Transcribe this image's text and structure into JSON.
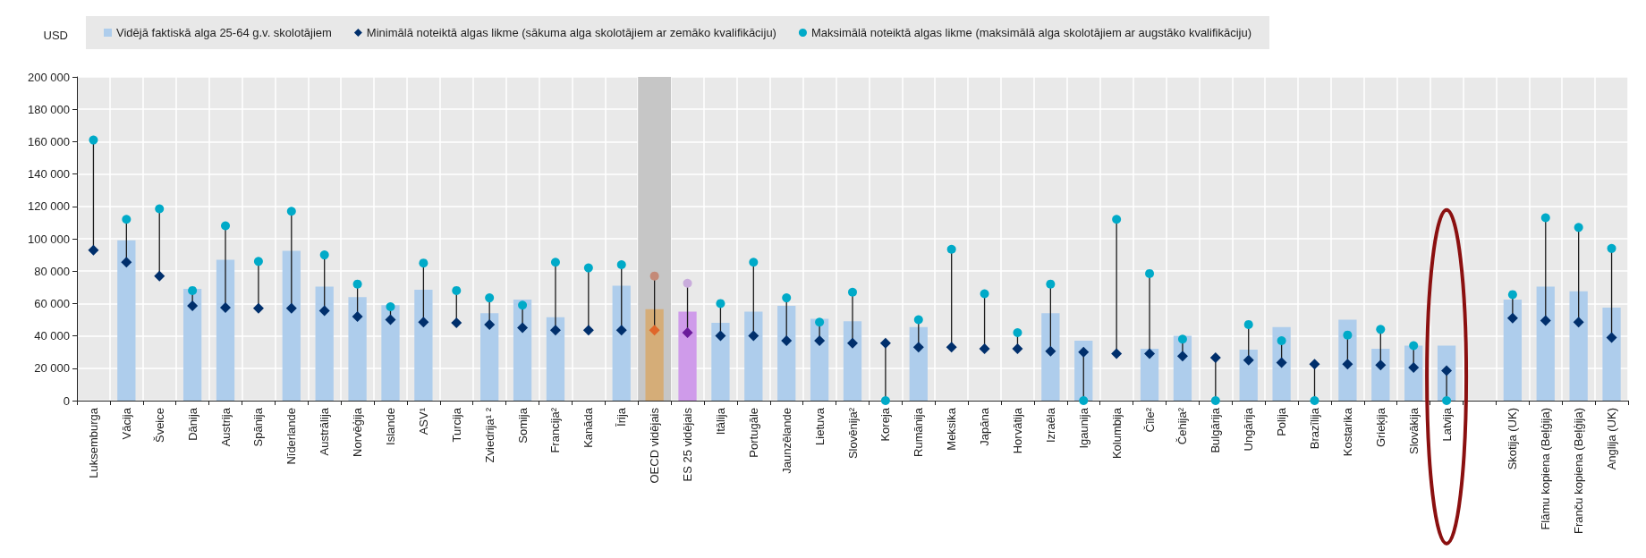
{
  "chart_data": {
    "type": "bar",
    "ylabel": "USD",
    "categories": [
      "Luksemburga",
      "Vācija",
      "Šveice",
      "Dānija",
      "Austrija",
      "Spānija",
      "Nīderlande",
      "Austrālija",
      "Norvēģija",
      "Islande",
      "ASV¹",
      "Turcija",
      "Zviedrija¹ ²",
      "Somija",
      "Francija²",
      "Kanāda",
      "Īrija",
      "OECD vidējais",
      "ES 25 vidējais",
      "Itālija",
      "Portugāle",
      "Jaunzēlande",
      "Lietuva",
      "Slovēnija²",
      "Koreja",
      "Rumānija",
      "Meksika",
      "Japāna",
      "Horvātija",
      "Izraēla",
      "Igaunija",
      "Kolumbija",
      "Čīle²",
      "Čehija²",
      "Bulgārija",
      "Ungārija",
      "Polija",
      "Brazīlija",
      "Kostarika",
      "Grieķija",
      "Slovākija",
      "Latvija",
      null,
      "Skotija (UK)",
      "Flāmu kopiena (Beļģija)",
      "Franču kopiena (Beļģija)",
      "Anglija (UK)"
    ],
    "series": [
      {
        "name": "Vidējā faktiskā alga 25-64 g.v. skolotājiem",
        "color": "#aecdec",
        "values": [
          null,
          99000,
          null,
          69000,
          87000,
          null,
          92500,
          70500,
          64000,
          59000,
          68500,
          null,
          54000,
          62500,
          51500,
          null,
          71000,
          56500,
          55000,
          48000,
          55000,
          58500,
          50500,
          49000,
          null,
          45500,
          null,
          null,
          null,
          54000,
          37000,
          null,
          32000,
          40000,
          null,
          31500,
          45500,
          null,
          50000,
          32000,
          34000,
          34000,
          null,
          62500,
          70500,
          67500,
          57500
        ],
        "colors": [
          null,
          null,
          null,
          null,
          null,
          null,
          null,
          null,
          null,
          null,
          null,
          null,
          null,
          null,
          null,
          null,
          null,
          "#d5ad78",
          "#cf9bea",
          null,
          null,
          null,
          null,
          null,
          null,
          null,
          null,
          null,
          null,
          null,
          null,
          null,
          null,
          null,
          null,
          null,
          null,
          null,
          null,
          null,
          null,
          null,
          null,
          null,
          null,
          null,
          null
        ]
      },
      {
        "name": "Minimālā noteiktā algas likme (sākuma alga skolotājiem ar zemāko kvalifikāciju)",
        "type": "scatter",
        "marker": "diamond",
        "color": "#002f6c",
        "values": [
          93000,
          85500,
          77000,
          58500,
          57500,
          57000,
          57000,
          55500,
          52000,
          50000,
          48500,
          48000,
          47000,
          45000,
          43500,
          43500,
          43500,
          43500,
          42000,
          40000,
          40000,
          37000,
          37000,
          35500,
          35500,
          33000,
          33000,
          32000,
          32000,
          30500,
          30000,
          29000,
          29000,
          27500,
          26500,
          25000,
          23500,
          22500,
          22500,
          22000,
          20500,
          18500,
          null,
          51000,
          49500,
          48500,
          39000
        ],
        "colors": [
          null,
          null,
          null,
          null,
          null,
          null,
          null,
          null,
          null,
          null,
          null,
          null,
          null,
          null,
          null,
          null,
          null,
          "#e0662a",
          "#6a1b9a",
          null,
          null,
          null,
          null,
          null,
          null,
          null,
          null,
          null,
          null,
          null,
          null,
          null,
          null,
          null,
          null,
          null,
          null,
          null,
          null,
          null,
          null,
          null,
          null,
          null,
          null,
          null,
          null
        ]
      },
      {
        "name": "Maksimālā noteiktā algas likme (maksimālā alga skolotājiem ar augstāko kvalifikāciju)",
        "type": "scatter",
        "marker": "circle",
        "color": "#00aac8",
        "values": [
          161000,
          112000,
          118500,
          68000,
          108000,
          86000,
          117000,
          90000,
          72000,
          58000,
          85000,
          68000,
          63500,
          59000,
          85500,
          82000,
          84000,
          77000,
          72500,
          60000,
          85500,
          63500,
          48500,
          67000,
          0,
          50000,
          93500,
          66000,
          42000,
          72000,
          0,
          112000,
          78500,
          38000,
          0,
          47000,
          37000,
          0,
          40500,
          44000,
          34000,
          0,
          null,
          65500,
          113000,
          107000,
          94000
        ],
        "colors": [
          null,
          null,
          null,
          null,
          null,
          null,
          null,
          null,
          null,
          null,
          null,
          null,
          null,
          null,
          null,
          null,
          null,
          "#c48a78",
          "#c9acdc",
          null,
          null,
          null,
          null,
          null,
          null,
          null,
          null,
          null,
          null,
          null,
          null,
          null,
          null,
          null,
          null,
          null,
          null,
          null,
          null,
          null,
          null,
          null,
          null,
          null,
          null,
          null,
          null
        ]
      }
    ],
    "ylim": [
      0,
      200000
    ],
    "yticks": [
      {
        "value": 0,
        "label": "0"
      },
      {
        "value": 20000,
        "label": "20 000"
      },
      {
        "value": 40000,
        "label": "40 000"
      },
      {
        "value": 60000,
        "label": "60 000"
      },
      {
        "value": 80000,
        "label": "80 000"
      },
      {
        "value": 100000,
        "label": "100 000"
      },
      {
        "value": 120000,
        "label": "120 000"
      },
      {
        "value": 140000,
        "label": "140 000"
      },
      {
        "value": 160000,
        "label": "160 000"
      },
      {
        "value": 180000,
        "label": "180 000"
      },
      {
        "value": 200000,
        "label": "200 000"
      }
    ],
    "bands": [
      {
        "axis": "x",
        "from": "OECD vidējais",
        "to": "OECD vidējais",
        "color": "#c6c6c6"
      }
    ],
    "grid": true,
    "legend": "top"
  }
}
